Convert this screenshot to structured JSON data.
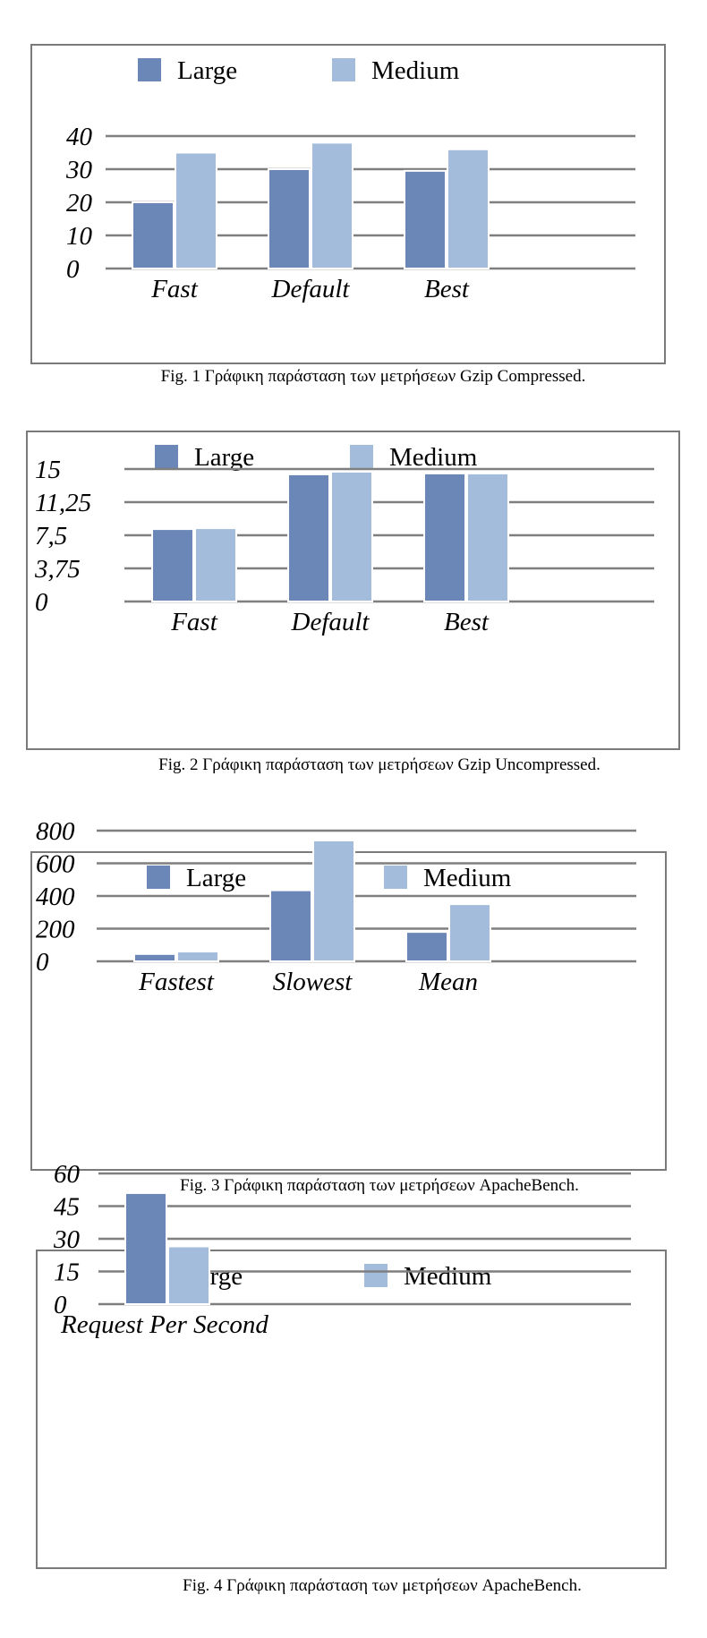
{
  "colors": {
    "large": "#6b87b8",
    "medium": "#a3bcdc",
    "grid": "#7f7f7f"
  },
  "chart_data": [
    {
      "type": "bar",
      "title": "",
      "xlabel": "",
      "ylabel": "",
      "categories": [
        "Fast",
        "Default",
        "Best"
      ],
      "series": [
        {
          "name": "Large",
          "values": [
            20,
            30,
            29.5
          ]
        },
        {
          "name": "Medium",
          "values": [
            35,
            38,
            36
          ]
        }
      ],
      "yticks": [
        "0",
        "10",
        "20",
        "30",
        "40"
      ],
      "ylim": [
        0,
        40
      ],
      "grid": true,
      "legend": "top",
      "caption": "Fig. 1 Γράφικη παράσταση των μετρήσεων Gzip Compressed."
    },
    {
      "type": "bar",
      "title": "",
      "xlabel": "",
      "ylabel": "",
      "categories": [
        "Fast",
        "Default",
        "Best"
      ],
      "series": [
        {
          "name": "Large",
          "values": [
            8.2,
            14.4,
            14.5
          ]
        },
        {
          "name": "Medium",
          "values": [
            8.3,
            14.7,
            14.5
          ]
        }
      ],
      "yticks": [
        "0",
        "3,75",
        "7,5",
        "11,25",
        "15"
      ],
      "ylim": [
        0,
        15
      ],
      "grid": true,
      "legend": "top",
      "caption": "Fig. 2  Γράφικη παράσταση των μετρήσεων Gzip Uncompressed."
    },
    {
      "type": "bar",
      "title": "",
      "xlabel": "",
      "ylabel": "",
      "categories": [
        "Fastest",
        "Slowest",
        "Mean"
      ],
      "series": [
        {
          "name": "Large",
          "values": [
            45,
            435,
            180
          ]
        },
        {
          "name": "Medium",
          "values": [
            60,
            740,
            350
          ]
        }
      ],
      "yticks": [
        "0",
        "200",
        "400",
        "600",
        "800"
      ],
      "ylim": [
        0,
        800
      ],
      "grid": true,
      "legend": "top",
      "caption": "Fig. 3  Γράφικη παράσταση των μετρήσεων ApacheBench."
    },
    {
      "type": "bar",
      "title": "",
      "xlabel": "",
      "ylabel": "",
      "categories": [
        "Request Per Second"
      ],
      "series": [
        {
          "name": "Large",
          "values": [
            51
          ]
        },
        {
          "name": "Medium",
          "values": [
            26.5
          ]
        }
      ],
      "yticks": [
        "0",
        "15",
        "30",
        "45",
        "60"
      ],
      "ylim": [
        0,
        60
      ],
      "grid": true,
      "legend": "top",
      "caption": "Fig. 4  Γράφικη παράσταση των μετρήσεων ApacheBench."
    }
  ]
}
